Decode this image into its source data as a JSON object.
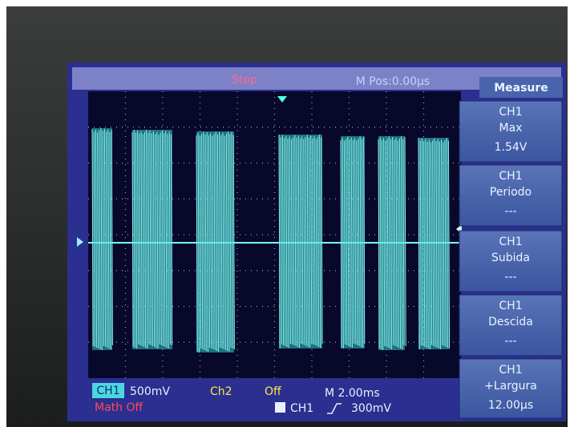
{
  "status": {
    "state": "Stop",
    "position": "M Pos:0.00μs"
  },
  "menu": {
    "title": "Measure",
    "items": [
      {
        "source": "CH1",
        "label": "Max",
        "value": "1.54V"
      },
      {
        "source": "CH1",
        "label": "Periodo",
        "value": "---"
      },
      {
        "source": "CH1",
        "label": "Subida",
        "value": "---"
      },
      {
        "source": "CH1",
        "label": "Descida",
        "value": "---"
      },
      {
        "source": "CH1",
        "label": "+Largura",
        "value": "12.00μs"
      }
    ]
  },
  "footer": {
    "ch1": {
      "label": "CH1",
      "scale": "500mV"
    },
    "ch2": {
      "label": "Ch2",
      "scale": "Off"
    },
    "timebase": "M 2.00ms",
    "math": "Math Off",
    "trigger": {
      "source": "CH1",
      "level": "300mV"
    }
  }
}
